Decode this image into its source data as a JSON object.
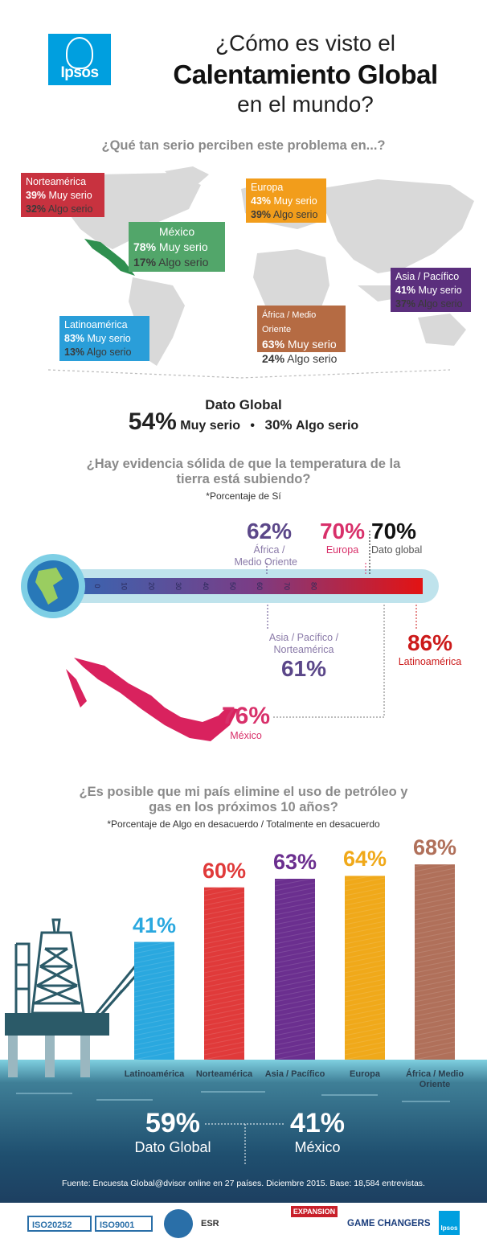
{
  "header": {
    "logo_text": "Ipsos",
    "title_line1": "¿Cómo es visto el",
    "title_line2": "Calentamiento Global",
    "title_line3": "en el mundo?"
  },
  "section1": {
    "question": "¿Qué tan serio perciben este problema en...?",
    "regions": [
      {
        "name": "Norteamérica",
        "muy_value": "39%",
        "muy_label": "Muy serio",
        "algo_value": "32%",
        "algo_label": "Algo serio",
        "color": "#c8323f"
      },
      {
        "name": "Europa",
        "muy_value": "43%",
        "muy_label": "Muy serio",
        "algo_value": "39%",
        "algo_label": "Algo serio",
        "color": "#f29d1b"
      },
      {
        "name": "México",
        "muy_value": "78%",
        "muy_label": "Muy serio",
        "algo_value": "17%",
        "algo_label": "Algo serio",
        "color": "#52a66a"
      },
      {
        "name": "Asia / Pacífico",
        "muy_value": "41%",
        "muy_label": "Muy serio",
        "algo_value": "37%",
        "algo_label": "Algo serio",
        "color": "#5b2f7d"
      },
      {
        "name": "Latinoamérica",
        "muy_value": "83%",
        "muy_label": "Muy serio",
        "algo_value": "13%",
        "algo_label": "Algo serio",
        "color": "#2a9ed9"
      },
      {
        "name": "África / Medio Oriente",
        "muy_value": "63%",
        "muy_label": "Muy serio",
        "algo_value": "24%",
        "algo_label": "Algo serio",
        "color": "#b56b43"
      }
    ],
    "global": {
      "title": "Dato Global",
      "muy_value": "54%",
      "muy_label": "Muy serio",
      "algo_value": "30%",
      "algo_label": "Algo serio",
      "separator": "•"
    }
  },
  "section2": {
    "question_line1": "¿Hay evidencia sólida de que la temperatura de la",
    "question_line2": "tierra está subiendo?",
    "note": "*Porcentaje de Sí",
    "scale_ticks": [
      "0",
      "10",
      "20",
      "30",
      "40",
      "50",
      "60",
      "70",
      "80"
    ],
    "callouts": [
      {
        "value": "62%",
        "label_line1": "África /",
        "label_line2": "Medio Oriente",
        "color": "#5b4789"
      },
      {
        "value": "70%",
        "label_line1": "Europa",
        "label_line2": "",
        "color": "#d8306a"
      },
      {
        "value": "70%",
        "label_line1": "Dato global",
        "label_line2": "",
        "color": "#111111"
      },
      {
        "value": "61%",
        "label_line1": "Asia / Pacífico /",
        "label_line2": "Norteamérica",
        "color": "#5b4789"
      },
      {
        "value": "86%",
        "label_line1": "Latinoamérica",
        "label_line2": "",
        "color": "#cc1a1a"
      },
      {
        "value": "76%",
        "label_line1": "México",
        "label_line2": "",
        "color": "#d8306a"
      }
    ]
  },
  "section3": {
    "question_line1": "¿Es posible que mi país elimine el uso de petróleo y",
    "question_line2": "gas en los próximos 10 años?",
    "note": "*Porcentaje de Algo en desacuerdo / Totalmente en desacuerdo",
    "global_value": "59%",
    "global_label": "Dato Global",
    "mexico_value": "41%",
    "mexico_label": "México"
  },
  "chart_data": {
    "type": "bar",
    "categories": [
      "Latinoamérica",
      "Norteamérica",
      "Asia / Pacífico",
      "Europa",
      "África / Medio Oriente"
    ],
    "values": [
      41,
      60,
      63,
      64,
      68
    ],
    "value_labels": [
      "41%",
      "60%",
      "63%",
      "64%",
      "68%"
    ],
    "colors": [
      "#2aa8df",
      "#e03a3a",
      "#6b2f8f",
      "#f0a91a",
      "#b0705a"
    ],
    "ylim": [
      0,
      70
    ]
  },
  "footer": {
    "source": "Fuente: Encuesta Global@dvisor online en 27 países. Diciembre 2015. Base: 18,584 entrevistas.",
    "badges": [
      "ISO20252",
      "ISO9001",
      "ESR",
      "EXPANSION",
      "GAME CHANGERS",
      "Ipsos"
    ]
  }
}
